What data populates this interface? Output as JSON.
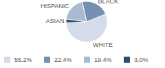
{
  "chart_data": {
    "type": "pie",
    "categories": [
      "WHITE",
      "BLACK",
      "HISPANIC",
      "ASIAN"
    ],
    "values": [
      55.2,
      22.4,
      19.4,
      3.0
    ],
    "value_labels": [
      "55.2%",
      "22.4%",
      "19.4%",
      "3.0%"
    ],
    "colors": [
      "#d3dce8",
      "#7591b1",
      "#a9bbd1",
      "#2d4d6e"
    ],
    "legend": "bottom"
  }
}
